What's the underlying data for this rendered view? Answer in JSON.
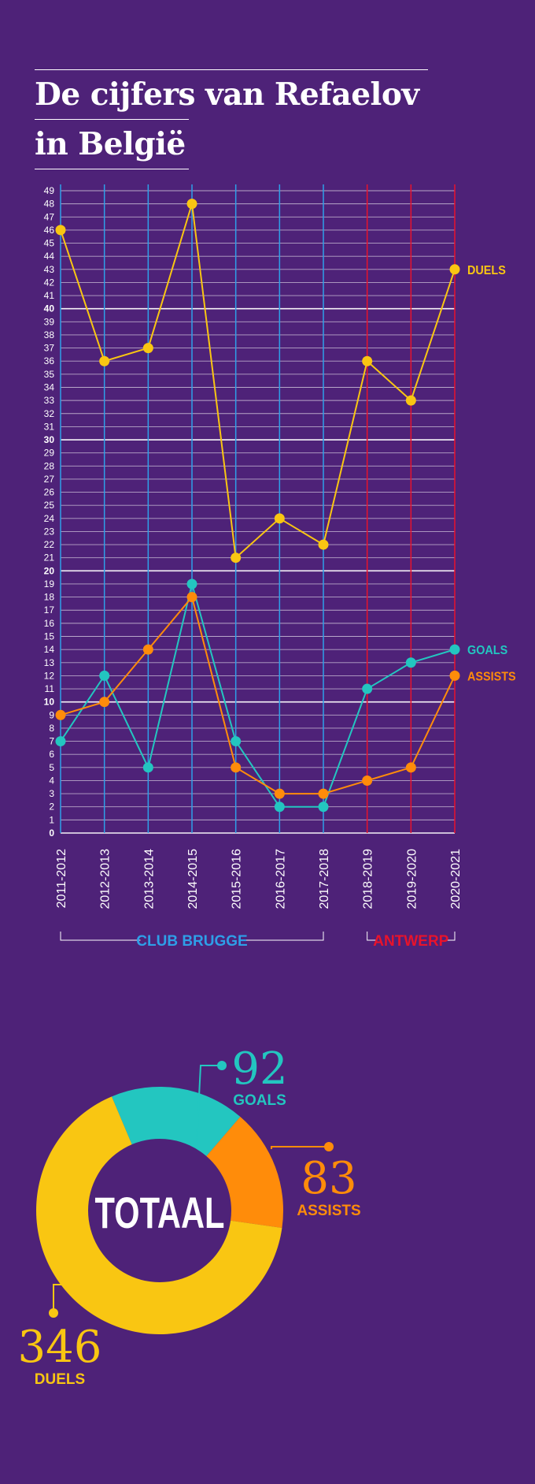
{
  "title": {
    "line1": "De cijfers van Refaelov",
    "line2": "in België"
  },
  "colors": {
    "background": "#4e2278",
    "club_brugge": "#2e9fe8",
    "antwerp": "#e8132b",
    "duels": "#f9c612",
    "goals": "#23c6c0",
    "assists": "#ff8c0a",
    "text": "#ffffff"
  },
  "chart_data": [
    {
      "type": "line",
      "categories": [
        "2011-2012",
        "2012-2013",
        "2013-2014",
        "2014-2015",
        "2015-2016",
        "2016-2017",
        "2017-2018",
        "2018-2019",
        "2019-2020",
        "2020-2021"
      ],
      "series": [
        {
          "name": "DUELS",
          "color": "#f9c612",
          "values": [
            46,
            36,
            37,
            48,
            21,
            24,
            22,
            36,
            33,
            43
          ]
        },
        {
          "name": "GOALS",
          "color": "#23c6c0",
          "values": [
            7,
            12,
            5,
            19,
            7,
            2,
            2,
            11,
            13,
            14
          ]
        },
        {
          "name": "ASSISTS",
          "color": "#ff8c0a",
          "values": [
            9,
            10,
            14,
            18,
            5,
            3,
            3,
            4,
            5,
            12
          ]
        }
      ],
      "ylim": [
        0,
        49
      ],
      "yticks": [
        0,
        1,
        2,
        3,
        4,
        5,
        6,
        7,
        8,
        9,
        10,
        11,
        12,
        13,
        14,
        15,
        16,
        17,
        18,
        19,
        20,
        21,
        22,
        23,
        24,
        25,
        26,
        27,
        28,
        29,
        30,
        31,
        32,
        33,
        34,
        35,
        36,
        37,
        38,
        39,
        40,
        41,
        42,
        43,
        44,
        45,
        46,
        47,
        48,
        49
      ],
      "groups": [
        {
          "label": "CLUB BRUGGE",
          "from": 0,
          "to": 6,
          "color": "#2e9fe8"
        },
        {
          "label": "ANTWERP",
          "from": 7,
          "to": 9,
          "color": "#e8132b"
        }
      ]
    },
    {
      "type": "pie",
      "center_label": "TOTAAL",
      "slices": [
        {
          "name": "GOALS",
          "value": 92,
          "color": "#23c6c0"
        },
        {
          "name": "ASSISTS",
          "value": 83,
          "color": "#ff8c0a"
        },
        {
          "name": "DUELS",
          "value": 346,
          "color": "#f9c612"
        }
      ]
    }
  ]
}
